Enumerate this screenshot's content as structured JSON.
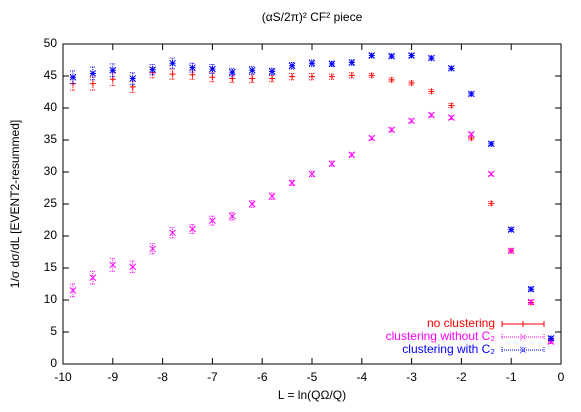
{
  "chart_data": {
    "type": "scatter",
    "title": "(αS/2π)² CF² piece",
    "x_label": "L = ln(QΩ/Q)",
    "y_label": "1/σ dσ/dL [EVENT2-resummed]",
    "x": [
      -9.8,
      -9.4,
      -9.0,
      -8.6,
      -8.2,
      -7.8,
      -7.4,
      -7.0,
      -6.6,
      -6.2,
      -5.8,
      -5.4,
      -5.0,
      -4.6,
      -4.2,
      -3.8,
      -3.4,
      -3.0,
      -2.6,
      -2.2,
      -1.8,
      -1.4,
      -1.0,
      -0.6,
      -0.2
    ],
    "series": [
      {
        "name": "no clustering",
        "color": "#ff0000",
        "marker": "plus",
        "values": [
          43.8,
          43.8,
          44.5,
          43.3,
          45.5,
          45.3,
          45.2,
          44.8,
          44.6,
          44.6,
          44.6,
          44.9,
          44.9,
          44.9,
          45.1,
          45.1,
          44.4,
          43.9,
          42.6,
          40.4,
          35.3,
          25.1,
          17.7,
          9.6,
          3.6
        ],
        "errors": [
          1.0,
          1.0,
          1.0,
          0.9,
          0.8,
          0.8,
          0.7,
          0.7,
          0.6,
          0.6,
          0.5,
          0.5,
          0.5,
          0.4,
          0.4,
          0.3,
          0.3,
          0.3,
          0.3,
          0.3,
          0.3,
          0.3,
          0.3,
          0.3,
          0.3
        ]
      },
      {
        "name": "clustering without C₂",
        "color": "#ff00ff",
        "marker": "cross",
        "values": [
          11.5,
          13.5,
          15.5,
          15.2,
          18.0,
          20.5,
          21.1,
          22.4,
          23.1,
          25.0,
          26.2,
          28.3,
          29.7,
          31.3,
          32.7,
          35.3,
          36.6,
          38.0,
          38.9,
          38.5,
          35.9,
          29.7,
          17.7,
          9.7,
          3.5
        ],
        "errors": [
          1.0,
          1.0,
          1.0,
          0.9,
          0.8,
          0.8,
          0.7,
          0.7,
          0.6,
          0.5,
          0.5,
          0.4,
          0.4,
          0.4,
          0.3,
          0.3,
          0.3,
          0.3,
          0.3,
          0.3,
          0.3,
          0.3,
          0.3,
          0.3,
          0.3
        ]
      },
      {
        "name": "clustering with C₂",
        "color": "#0000ff",
        "marker": "star",
        "values": [
          44.8,
          45.4,
          45.9,
          44.6,
          46.0,
          47.0,
          46.3,
          46.1,
          45.6,
          45.9,
          45.7,
          46.6,
          47.0,
          46.9,
          47.1,
          48.2,
          48.1,
          48.2,
          47.8,
          46.2,
          42.2,
          34.4,
          21.0,
          11.7,
          4.0
        ],
        "errors": [
          1.0,
          1.0,
          1.0,
          0.9,
          0.8,
          0.8,
          0.7,
          0.7,
          0.6,
          0.6,
          0.5,
          0.5,
          0.5,
          0.4,
          0.4,
          0.3,
          0.3,
          0.3,
          0.3,
          0.3,
          0.3,
          0.3,
          0.3,
          0.3,
          0.3
        ]
      }
    ],
    "xlim": [
      -10,
      0
    ],
    "xticks": [
      -10,
      -9,
      -8,
      -7,
      -6,
      -5,
      -4,
      -3,
      -2,
      -1,
      0
    ],
    "ylim": [
      0,
      50
    ],
    "yticks": [
      0,
      5,
      10,
      15,
      20,
      25,
      30,
      35,
      40,
      45,
      50
    ],
    "grid": false,
    "legend": "bottom-right"
  }
}
